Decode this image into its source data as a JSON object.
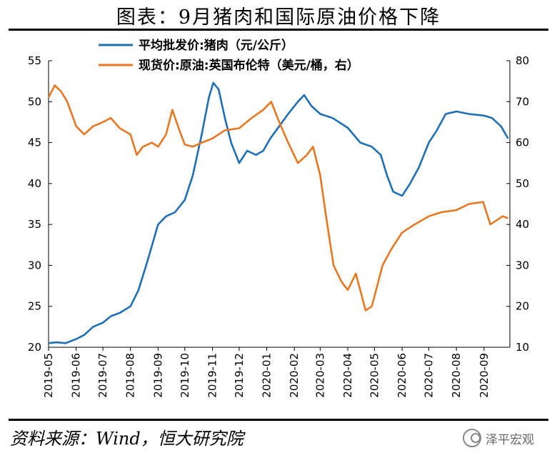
{
  "title": "图表：9月猪肉和国际原油价格下降",
  "source": "资料来源：Wind，恒大研究院",
  "watermark": "泽平宏观",
  "chart_data": {
    "type": "line",
    "x_tick_labels": [
      "2019-05",
      "2019-06",
      "2019-07",
      "2019-08",
      "2019-09",
      "2019-10",
      "2019-11",
      "2019-12",
      "2020-01",
      "2020-02",
      "2020-03",
      "2020-04",
      "2020-05",
      "2020-06",
      "2020-07",
      "2020-08",
      "2020-09"
    ],
    "y_left": {
      "lim": [
        20,
        55
      ],
      "ticks": [
        20,
        25,
        30,
        35,
        40,
        45,
        50,
        55
      ]
    },
    "y_right": {
      "lim": [
        10,
        80
      ],
      "ticks": [
        10,
        20,
        30,
        40,
        50,
        60,
        70,
        80
      ]
    },
    "legend_position": "top",
    "series": [
      {
        "name": "平均批发价:猪肉（元/公斤）",
        "axis": "left",
        "color": "#1f6fb5",
        "points": [
          [
            "2019-05-01",
            20.5
          ],
          [
            "2019-05-10",
            20.6
          ],
          [
            "2019-05-20",
            20.5
          ],
          [
            "2019-06-01",
            21.0
          ],
          [
            "2019-06-10",
            21.5
          ],
          [
            "2019-06-20",
            22.5
          ],
          [
            "2019-07-01",
            23.0
          ],
          [
            "2019-07-10",
            23.8
          ],
          [
            "2019-07-20",
            24.2
          ],
          [
            "2019-08-01",
            25.0
          ],
          [
            "2019-08-10",
            27.0
          ],
          [
            "2019-08-20",
            30.5
          ],
          [
            "2019-09-01",
            35.0
          ],
          [
            "2019-09-10",
            36.0
          ],
          [
            "2019-09-20",
            36.5
          ],
          [
            "2019-10-01",
            38.0
          ],
          [
            "2019-10-10",
            41.0
          ],
          [
            "2019-10-20",
            46.0
          ],
          [
            "2019-10-28",
            50.5
          ],
          [
            "2019-11-02",
            52.3
          ],
          [
            "2019-11-08",
            51.5
          ],
          [
            "2019-11-15",
            48.0
          ],
          [
            "2019-11-22",
            45.0
          ],
          [
            "2019-12-01",
            42.5
          ],
          [
            "2019-12-10",
            44.0
          ],
          [
            "2019-12-20",
            43.5
          ],
          [
            "2019-12-28",
            44.0
          ],
          [
            "2020-01-05",
            45.5
          ],
          [
            "2020-01-15",
            47.0
          ],
          [
            "2020-01-25",
            48.5
          ],
          [
            "2020-02-05",
            50.0
          ],
          [
            "2020-02-12",
            50.8
          ],
          [
            "2020-02-20",
            49.5
          ],
          [
            "2020-03-01",
            48.5
          ],
          [
            "2020-03-15",
            48.0
          ],
          [
            "2020-04-01",
            46.8
          ],
          [
            "2020-04-15",
            45.0
          ],
          [
            "2020-04-28",
            44.5
          ],
          [
            "2020-05-08",
            43.5
          ],
          [
            "2020-05-15",
            41.0
          ],
          [
            "2020-05-22",
            39.0
          ],
          [
            "2020-06-01",
            38.5
          ],
          [
            "2020-06-10",
            40.0
          ],
          [
            "2020-06-20",
            42.0
          ],
          [
            "2020-07-01",
            45.0
          ],
          [
            "2020-07-10",
            46.5
          ],
          [
            "2020-07-20",
            48.5
          ],
          [
            "2020-08-01",
            48.8
          ],
          [
            "2020-08-15",
            48.5
          ],
          [
            "2020-09-01",
            48.3
          ],
          [
            "2020-09-10",
            48.0
          ],
          [
            "2020-09-20",
            47.0
          ],
          [
            "2020-09-28",
            45.5
          ]
        ]
      },
      {
        "name": "现货价:原油:英国布伦特（美元/桶，右）",
        "axis": "right",
        "color": "#e87722",
        "points": [
          [
            "2019-05-01",
            71.0
          ],
          [
            "2019-05-08",
            74.0
          ],
          [
            "2019-05-15",
            72.5
          ],
          [
            "2019-05-22",
            70.0
          ],
          [
            "2019-06-01",
            64.0
          ],
          [
            "2019-06-10",
            62.0
          ],
          [
            "2019-06-20",
            64.0
          ],
          [
            "2019-07-01",
            65.0
          ],
          [
            "2019-07-10",
            66.0
          ],
          [
            "2019-07-20",
            63.5
          ],
          [
            "2019-08-01",
            62.0
          ],
          [
            "2019-08-08",
            57.0
          ],
          [
            "2019-08-15",
            59.0
          ],
          [
            "2019-08-25",
            60.0
          ],
          [
            "2019-09-01",
            59.0
          ],
          [
            "2019-09-10",
            62.0
          ],
          [
            "2019-09-17",
            68.0
          ],
          [
            "2019-09-25",
            63.0
          ],
          [
            "2019-10-01",
            59.5
          ],
          [
            "2019-10-10",
            59.0
          ],
          [
            "2019-10-20",
            60.0
          ],
          [
            "2019-11-01",
            61.0
          ],
          [
            "2019-11-15",
            63.0
          ],
          [
            "2019-12-01",
            63.5
          ],
          [
            "2019-12-15",
            66.0
          ],
          [
            "2019-12-28",
            68.0
          ],
          [
            "2020-01-06",
            70.0
          ],
          [
            "2020-01-15",
            65.0
          ],
          [
            "2020-01-25",
            60.0
          ],
          [
            "2020-02-05",
            55.0
          ],
          [
            "2020-02-15",
            57.0
          ],
          [
            "2020-02-22",
            59.0
          ],
          [
            "2020-03-01",
            52.0
          ],
          [
            "2020-03-09",
            40.0
          ],
          [
            "2020-03-16",
            30.0
          ],
          [
            "2020-03-25",
            26.0
          ],
          [
            "2020-04-01",
            24.0
          ],
          [
            "2020-04-10",
            28.0
          ],
          [
            "2020-04-21",
            19.0
          ],
          [
            "2020-04-28",
            20.0
          ],
          [
            "2020-05-10",
            30.0
          ],
          [
            "2020-05-20",
            34.0
          ],
          [
            "2020-06-01",
            38.0
          ],
          [
            "2020-06-15",
            40.0
          ],
          [
            "2020-07-01",
            42.0
          ],
          [
            "2020-07-15",
            43.0
          ],
          [
            "2020-08-01",
            43.5
          ],
          [
            "2020-08-15",
            45.0
          ],
          [
            "2020-08-31",
            45.5
          ],
          [
            "2020-09-08",
            40.0
          ],
          [
            "2020-09-15",
            41.0
          ],
          [
            "2020-09-22",
            42.0
          ],
          [
            "2020-09-28",
            41.5
          ]
        ]
      }
    ]
  }
}
